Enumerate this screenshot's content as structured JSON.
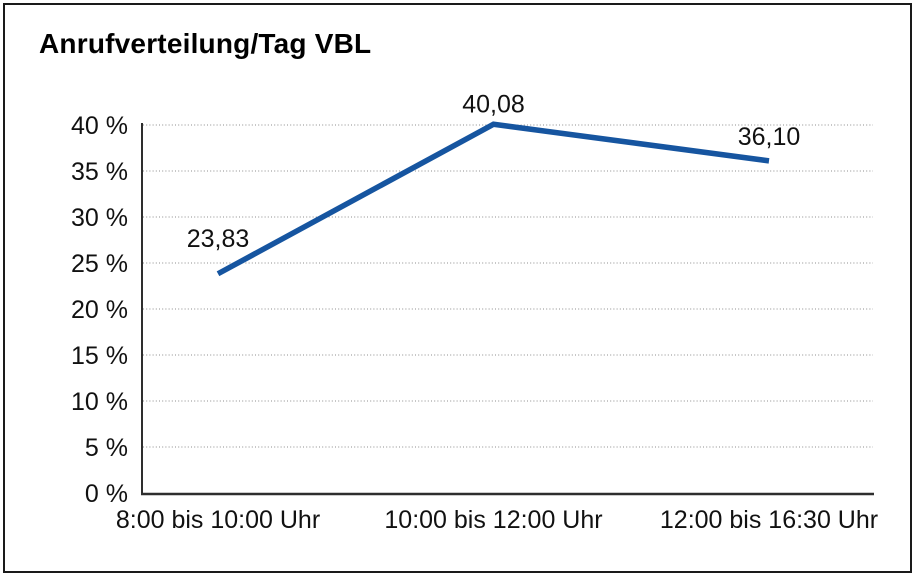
{
  "window": {
    "background_color": "#ffffff",
    "frame_border_color": "#1a1a1a"
  },
  "chart_data": {
    "type": "line",
    "title": "Anrufverteilung/Tag VBL",
    "categories": [
      "8:00 bis 10:00 Uhr",
      "10:00 bis 12:00 Uhr",
      "12:00 bis 16:30 Uhr"
    ],
    "values": [
      23.83,
      40.08,
      36.1
    ],
    "point_labels": [
      "23,83",
      "40,08",
      "36,10"
    ],
    "y_ticks": [
      {
        "value": 0,
        "label": "0 %"
      },
      {
        "value": 5,
        "label": "5 %"
      },
      {
        "value": 10,
        "label": "10 %"
      },
      {
        "value": 15,
        "label": "15 %"
      },
      {
        "value": 20,
        "label": "20 %"
      },
      {
        "value": 25,
        "label": "25 %"
      },
      {
        "value": 30,
        "label": "30 %"
      },
      {
        "value": 35,
        "label": "35 %"
      },
      {
        "value": 40,
        "label": "40 %"
      }
    ],
    "ylim": [
      0,
      40
    ],
    "xlabel": "",
    "ylabel": "",
    "grid": "horizontal-dotted",
    "legend": "none",
    "line_color": "#1655A0",
    "axis_color": "#2e2e2e",
    "gridline_color": "#8c8c8c",
    "text_color": "#111111"
  }
}
